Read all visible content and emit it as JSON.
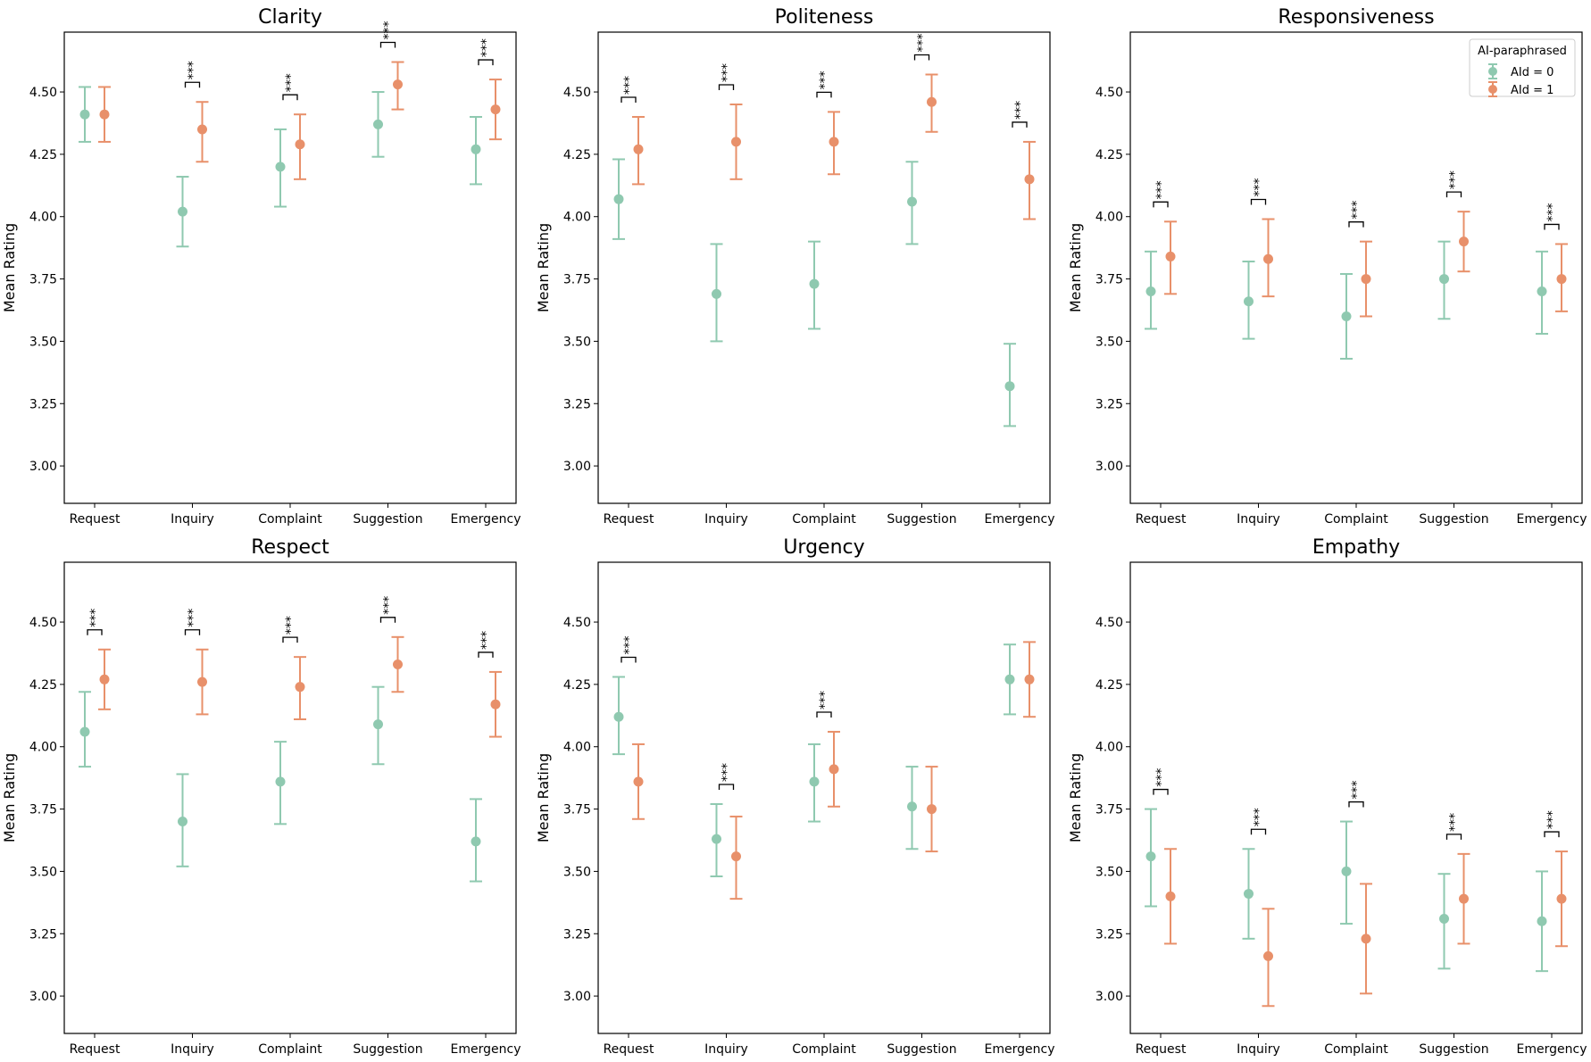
{
  "chart_data": {
    "type": "scatter",
    "subtype": "point-errorbar",
    "layout": "2x3 grid",
    "categories": [
      "Request",
      "Inquiry",
      "Complaint",
      "Suggestion",
      "Emergency"
    ],
    "ylabel": "Mean Rating",
    "ylim": [
      2.85,
      4.74
    ],
    "yticks": [
      "3.00",
      "3.25",
      "3.50",
      "3.75",
      "4.00",
      "4.25",
      "4.50"
    ],
    "series_names": [
      "AId = 0",
      "AId = 1"
    ],
    "colors": {
      "AId = 0": "#8fc9b0",
      "AId = 1": "#e8906a"
    },
    "significance_label": "***",
    "legend": {
      "title": "AI-paraphrased",
      "entries": [
        "AId = 0",
        "AId = 1"
      ],
      "placement": "top-right",
      "panel": "Responsiveness"
    },
    "panels": [
      {
        "title": "Clarity",
        "series": [
          {
            "name": "AId = 0",
            "mean": [
              4.41,
              4.02,
              4.2,
              4.37,
              4.27
            ],
            "lower": [
              4.3,
              3.88,
              4.04,
              4.24,
              4.13
            ],
            "upper": [
              4.52,
              4.16,
              4.35,
              4.5,
              4.4
            ]
          },
          {
            "name": "AId = 1",
            "mean": [
              4.41,
              4.35,
              4.29,
              4.53,
              4.43
            ],
            "lower": [
              4.3,
              4.22,
              4.15,
              4.43,
              4.31
            ],
            "upper": [
              4.52,
              4.46,
              4.41,
              4.62,
              4.55
            ]
          }
        ],
        "significant": [
          false,
          true,
          true,
          true,
          true
        ]
      },
      {
        "title": "Politeness",
        "series": [
          {
            "name": "AId = 0",
            "mean": [
              4.07,
              3.69,
              3.73,
              4.06,
              3.32
            ],
            "lower": [
              3.91,
              3.5,
              3.55,
              3.89,
              3.16
            ],
            "upper": [
              4.23,
              3.89,
              3.9,
              4.22,
              3.49
            ]
          },
          {
            "name": "AId = 1",
            "mean": [
              4.27,
              4.3,
              4.3,
              4.46,
              4.15
            ],
            "lower": [
              4.13,
              4.15,
              4.17,
              4.34,
              3.99
            ],
            "upper": [
              4.4,
              4.45,
              4.42,
              4.57,
              4.3
            ]
          }
        ],
        "significant": [
          true,
          true,
          true,
          true,
          true
        ]
      },
      {
        "title": "Responsiveness",
        "series": [
          {
            "name": "AId = 0",
            "mean": [
              3.7,
              3.66,
              3.6,
              3.75,
              3.7
            ],
            "lower": [
              3.55,
              3.51,
              3.43,
              3.59,
              3.53
            ],
            "upper": [
              3.86,
              3.82,
              3.77,
              3.9,
              3.86
            ]
          },
          {
            "name": "AId = 1",
            "mean": [
              3.84,
              3.83,
              3.75,
              3.9,
              3.75
            ],
            "lower": [
              3.69,
              3.68,
              3.6,
              3.78,
              3.62
            ],
            "upper": [
              3.98,
              3.99,
              3.9,
              4.02,
              3.89
            ]
          }
        ],
        "significant": [
          true,
          true,
          true,
          true,
          true
        ]
      },
      {
        "title": "Respect",
        "series": [
          {
            "name": "AId = 0",
            "mean": [
              4.06,
              3.7,
              3.86,
              4.09,
              3.62
            ],
            "lower": [
              3.92,
              3.52,
              3.69,
              3.93,
              3.46
            ],
            "upper": [
              4.22,
              3.89,
              4.02,
              4.24,
              3.79
            ]
          },
          {
            "name": "AId = 1",
            "mean": [
              4.27,
              4.26,
              4.24,
              4.33,
              4.17
            ],
            "lower": [
              4.15,
              4.13,
              4.11,
              4.22,
              4.04
            ],
            "upper": [
              4.39,
              4.39,
              4.36,
              4.44,
              4.3
            ]
          }
        ],
        "significant": [
          true,
          true,
          true,
          true,
          true
        ]
      },
      {
        "title": "Urgency",
        "series": [
          {
            "name": "AId = 0",
            "mean": [
              4.12,
              3.63,
              3.86,
              3.76,
              4.27
            ],
            "lower": [
              3.97,
              3.48,
              3.7,
              3.59,
              4.13
            ],
            "upper": [
              4.28,
              3.77,
              4.01,
              3.92,
              4.41
            ]
          },
          {
            "name": "AId = 1",
            "mean": [
              3.86,
              3.56,
              3.91,
              3.75,
              4.27
            ],
            "lower": [
              3.71,
              3.39,
              3.76,
              3.58,
              4.12
            ],
            "upper": [
              4.01,
              3.72,
              4.06,
              3.92,
              4.42
            ]
          }
        ],
        "significant": [
          true,
          true,
          true,
          false,
          false
        ]
      },
      {
        "title": "Empathy",
        "series": [
          {
            "name": "AId = 0",
            "mean": [
              3.56,
              3.41,
              3.5,
              3.31,
              3.3
            ],
            "lower": [
              3.36,
              3.23,
              3.29,
              3.11,
              3.1
            ],
            "upper": [
              3.75,
              3.59,
              3.7,
              3.49,
              3.5
            ]
          },
          {
            "name": "AId = 1",
            "mean": [
              3.4,
              3.16,
              3.23,
              3.39,
              3.39
            ],
            "lower": [
              3.21,
              2.96,
              3.01,
              3.21,
              3.2
            ],
            "upper": [
              3.59,
              3.35,
              3.45,
              3.57,
              3.58
            ]
          }
        ],
        "significant": [
          true,
          true,
          true,
          true,
          true
        ]
      }
    ]
  }
}
